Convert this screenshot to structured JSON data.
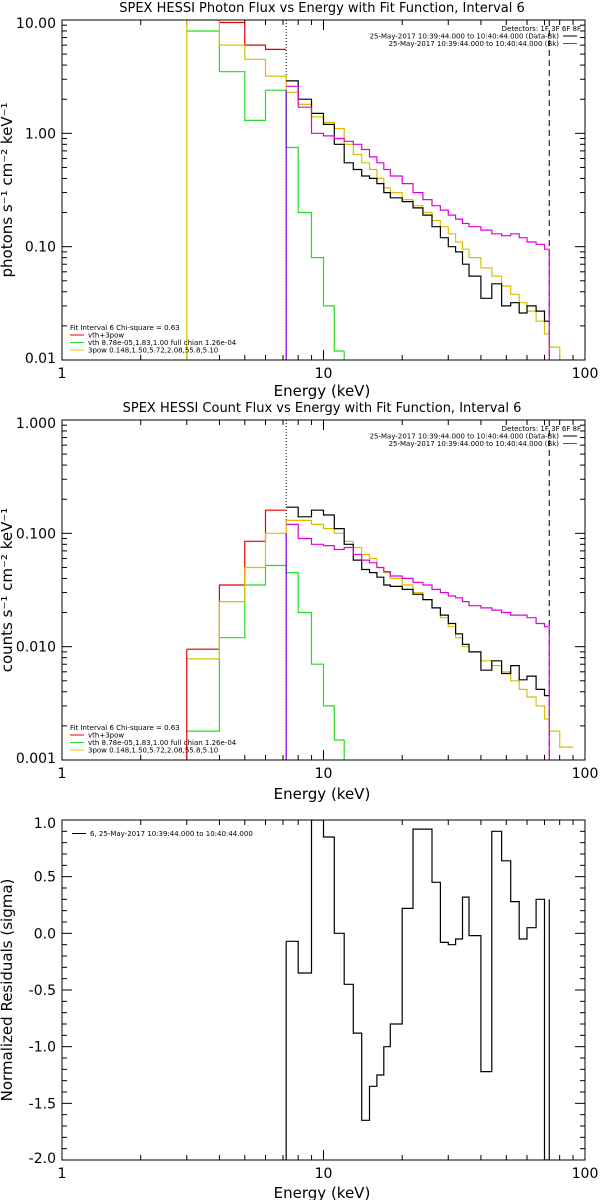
{
  "colors": {
    "black": "#000000",
    "red": "#e00000",
    "green": "#22dd22",
    "yellow": "#d8c000",
    "magenta": "#dd00dd",
    "purple": "#7700ee",
    "background": "#ffffff"
  },
  "chart_data": [
    {
      "type": "line",
      "line_style": "step",
      "title": "SPEX HESSI Photon Flux vs Energy with Fit Function, Interval 6",
      "xlabel": "Energy (keV)",
      "ylabel": "photons s⁻¹ cm⁻² keV⁻¹",
      "xscale": "log",
      "yscale": "log",
      "xlim": [
        1,
        100
      ],
      "ylim": [
        0.01,
        10
      ],
      "xticks": [
        {
          "v": 1,
          "label": "1"
        },
        {
          "v": 10,
          "label": "10"
        },
        {
          "v": 100,
          "label": "100"
        }
      ],
      "yticks": [
        {
          "v": 0.01,
          "label": "0.01"
        },
        {
          "v": 0.1,
          "label": "0.10"
        },
        {
          "v": 1,
          "label": "1.00"
        },
        {
          "v": 10,
          "label": "10.00"
        }
      ],
      "vlines": [
        {
          "x": 7.2,
          "style": "dotted",
          "color": "#000000"
        },
        {
          "x": 73,
          "style": "dashed",
          "color": "#000000"
        }
      ],
      "legend_top_right": [
        {
          "text": "Detectors: 1F 3F 6F 8F",
          "color": "#000000",
          "marker": false
        },
        {
          "text": "25-May-2017 10:39:44.000 to 10:40:44.000 (Data-Bk)",
          "color": "#000000",
          "marker": true
        },
        {
          "text": "25-May-2017 10:39:44.000 to 10:40:44.000 (Bk)",
          "color": "#dd00dd",
          "marker": true
        }
      ],
      "legend_bottom_left": [
        {
          "text": "Fit Interval  6    Chi-square = 0.63",
          "color": "#000000",
          "marker": false
        },
        {
          "text": "vth+3pow",
          "color": "#e00000",
          "marker": true
        },
        {
          "text": "vth 8.78e-05,1.83,1.00   full chian 1.26e-04",
          "color": "#22dd22",
          "marker": true
        },
        {
          "text": "3pow 0.148,1.50,5.72,2.08,55.8,5.10",
          "color": "#d8c000",
          "marker": true
        }
      ],
      "series": [
        {
          "name": "vth+3pow",
          "color": "#e00000",
          "edges": [
            3,
            4,
            5,
            6,
            7.2
          ],
          "values": [
            10.5,
            9.5,
            6.0,
            5.5
          ]
        },
        {
          "name": "vth",
          "color": "#22dd22",
          "edges": [
            3,
            4,
            5,
            6,
            7.2,
            8,
            9,
            10,
            11,
            12
          ],
          "values": [
            8.0,
            3.5,
            1.3,
            2.4,
            0.75,
            0.2,
            0.08,
            0.03,
            0.012
          ]
        },
        {
          "name": "3pow",
          "color": "#d8c000",
          "edges": [
            3,
            4,
            5,
            6,
            7.2,
            8,
            9,
            10,
            11,
            12,
            13,
            14,
            15,
            16,
            17,
            18,
            20,
            22,
            24,
            26,
            28,
            30,
            32,
            34,
            36,
            40,
            44,
            48,
            52,
            56,
            60,
            65,
            70,
            73,
            80,
            90
          ],
          "values": [
            10.0,
            6.0,
            4.5,
            3.2,
            2.3,
            1.8,
            1.4,
            1.25,
            1.1,
            0.8,
            0.65,
            0.55,
            0.48,
            0.4,
            0.33,
            0.3,
            0.26,
            0.23,
            0.2,
            0.17,
            0.15,
            0.13,
            0.11,
            0.095,
            0.08,
            0.065,
            0.055,
            0.045,
            0.038,
            0.032,
            0.027,
            0.022,
            0.017,
            0.013,
            0.01
          ]
        },
        {
          "name": "Data-Bk",
          "color": "#000000",
          "edges": [
            7.2,
            8,
            9,
            10,
            11,
            12,
            13,
            14,
            15,
            16,
            17,
            18,
            20,
            22,
            24,
            26,
            28,
            30,
            32,
            34,
            36,
            40,
            44,
            48,
            52,
            56,
            60,
            65,
            70,
            73
          ],
          "values": [
            2.9,
            2.0,
            1.5,
            1.2,
            0.8,
            0.55,
            0.48,
            0.42,
            0.4,
            0.36,
            0.3,
            0.27,
            0.25,
            0.22,
            0.19,
            0.15,
            0.12,
            0.1,
            0.09,
            0.07,
            0.055,
            0.035,
            0.047,
            0.03,
            0.032,
            0.026,
            0.03,
            0.027,
            0.022
          ]
        },
        {
          "name": "Bk",
          "color": "#dd00dd",
          "edges": [
            7.2,
            8,
            9,
            10,
            11,
            12,
            13,
            14,
            15,
            16,
            17,
            18,
            20,
            22,
            24,
            26,
            28,
            30,
            32,
            34,
            36,
            40,
            44,
            48,
            52,
            56,
            60,
            65,
            70,
            73
          ],
          "values": [
            2.6,
            1.7,
            1.0,
            0.95,
            0.9,
            0.85,
            0.8,
            0.72,
            0.62,
            0.55,
            0.48,
            0.42,
            0.36,
            0.3,
            0.26,
            0.23,
            0.21,
            0.19,
            0.175,
            0.16,
            0.15,
            0.14,
            0.13,
            0.125,
            0.13,
            0.12,
            0.11,
            0.105,
            0.095
          ]
        }
      ],
      "vertical_segments": [
        {
          "x": 3,
          "y0": 0.01,
          "y1": 10.5,
          "color": "#d8c000"
        },
        {
          "x": 7.2,
          "y0": 0.01,
          "y1": 2.4,
          "color": "#7700ee"
        },
        {
          "x": 12,
          "y0": 0.01,
          "y1": 0.012,
          "color": "#22dd22"
        },
        {
          "x": 73,
          "y0": 0.01,
          "y1": 0.095,
          "color": "#dd00dd"
        }
      ]
    },
    {
      "type": "line",
      "line_style": "step",
      "title": "SPEX HESSI Count Flux vs Energy with Fit Function, Interval 6",
      "xlabel": "Energy (keV)",
      "ylabel": "counts s⁻¹ cm⁻² keV⁻¹",
      "xscale": "log",
      "yscale": "log",
      "xlim": [
        1,
        100
      ],
      "ylim": [
        0.001,
        1
      ],
      "xticks": [
        {
          "v": 1,
          "label": "1"
        },
        {
          "v": 10,
          "label": "10"
        },
        {
          "v": 100,
          "label": "100"
        }
      ],
      "yticks": [
        {
          "v": 0.001,
          "label": "0.001"
        },
        {
          "v": 0.01,
          "label": "0.010"
        },
        {
          "v": 0.1,
          "label": "0.100"
        },
        {
          "v": 1,
          "label": "1.000"
        }
      ],
      "vlines": [
        {
          "x": 7.2,
          "style": "dotted",
          "color": "#000000"
        },
        {
          "x": 73,
          "style": "dashed",
          "color": "#000000"
        }
      ],
      "legend_top_right": [
        {
          "text": "Detectors: 1F 3F 6F 8F",
          "color": "#000000",
          "marker": false
        },
        {
          "text": "25-May-2017 10:39:44.000 to 10:40:44.000 (Data-Bk)",
          "color": "#000000",
          "marker": true
        },
        {
          "text": "25-May-2017 10:39:44.000 to 10:40:44.000 (Bk)",
          "color": "#dd00dd",
          "marker": true
        }
      ],
      "legend_bottom_left": [
        {
          "text": "Fit Interval  6    Chi-square = 0.63",
          "color": "#000000",
          "marker": false
        },
        {
          "text": "vth+3pow",
          "color": "#e00000",
          "marker": true
        },
        {
          "text": "vth 8.78e-05,1.83,1.00   full chian 1.26e-04",
          "color": "#22dd22",
          "marker": true
        },
        {
          "text": "3pow 0.148,1.50,5.72,2.08,55.8,5.10",
          "color": "#d8c000",
          "marker": true
        }
      ],
      "series": [
        {
          "name": "vth+3pow",
          "color": "#e00000",
          "edges": [
            3,
            4,
            5,
            6,
            7.2
          ],
          "values": [
            0.0095,
            0.035,
            0.085,
            0.16
          ]
        },
        {
          "name": "vth",
          "color": "#22dd22",
          "edges": [
            3,
            4,
            5,
            6,
            7.2,
            8,
            9,
            10,
            11,
            12
          ],
          "values": [
            0.0018,
            0.012,
            0.035,
            0.052,
            0.045,
            0.02,
            0.007,
            0.003,
            0.0015
          ]
        },
        {
          "name": "3pow",
          "color": "#d8c000",
          "edges": [
            3,
            4,
            5,
            6,
            7.2,
            8,
            9,
            10,
            11,
            12,
            13,
            14,
            15,
            16,
            17,
            18,
            20,
            22,
            24,
            26,
            28,
            30,
            32,
            34,
            36,
            40,
            44,
            48,
            52,
            56,
            60,
            65,
            70,
            73,
            80,
            90
          ],
          "values": [
            0.0078,
            0.025,
            0.05,
            0.1,
            0.13,
            0.13,
            0.12,
            0.11,
            0.1,
            0.085,
            0.075,
            0.065,
            0.06,
            0.05,
            0.045,
            0.04,
            0.035,
            0.03,
            0.026,
            0.022,
            0.018,
            0.015,
            0.012,
            0.01,
            0.009,
            0.0075,
            0.0068,
            0.006,
            0.005,
            0.0042,
            0.0036,
            0.003,
            0.0023,
            0.0018,
            0.0013
          ]
        },
        {
          "name": "Data-Bk",
          "color": "#000000",
          "edges": [
            7.2,
            8,
            9,
            10,
            11,
            12,
            13,
            14,
            15,
            16,
            17,
            18,
            20,
            22,
            24,
            26,
            28,
            30,
            32,
            34,
            36,
            40,
            44,
            48,
            52,
            56,
            60,
            65,
            70,
            73
          ],
          "values": [
            0.17,
            0.14,
            0.16,
            0.145,
            0.11,
            0.08,
            0.058,
            0.048,
            0.045,
            0.041,
            0.035,
            0.034,
            0.032,
            0.029,
            0.026,
            0.022,
            0.019,
            0.016,
            0.013,
            0.0105,
            0.009,
            0.0062,
            0.0075,
            0.0058,
            0.0068,
            0.0051,
            0.0055,
            0.0042,
            0.0037
          ]
        },
        {
          "name": "Bk",
          "color": "#dd00dd",
          "edges": [
            7.2,
            8,
            9,
            10,
            11,
            12,
            13,
            14,
            15,
            16,
            17,
            18,
            20,
            22,
            24,
            26,
            28,
            30,
            32,
            34,
            36,
            40,
            44,
            48,
            52,
            56,
            60,
            65,
            70,
            73
          ],
          "values": [
            0.12,
            0.09,
            0.08,
            0.078,
            0.072,
            0.075,
            0.065,
            0.058,
            0.055,
            0.05,
            0.046,
            0.042,
            0.04,
            0.037,
            0.035,
            0.032,
            0.03,
            0.028,
            0.027,
            0.025,
            0.023,
            0.022,
            0.021,
            0.02,
            0.019,
            0.019,
            0.018,
            0.016,
            0.015
          ]
        }
      ],
      "vertical_segments": [
        {
          "x": 3,
          "y0": 0.001,
          "y1": 0.0095,
          "color": "#e00000"
        },
        {
          "x": 7.2,
          "y0": 0.001,
          "y1": 0.1,
          "color": "#7700ee"
        },
        {
          "x": 12,
          "y0": 0.001,
          "y1": 0.0015,
          "color": "#22dd22"
        },
        {
          "x": 73,
          "y0": 0.001,
          "y1": 0.015,
          "color": "#dd00dd"
        }
      ]
    },
    {
      "type": "line",
      "line_style": "step",
      "title": "",
      "xlabel": "Energy (keV)",
      "ylabel": "Normalized Residuals (sigma)",
      "xscale": "log",
      "yscale": "linear",
      "xlim": [
        1,
        100
      ],
      "ylim": [
        -2.0,
        1.0
      ],
      "xticks": [
        {
          "v": 1,
          "label": "1"
        },
        {
          "v": 10,
          "label": "10"
        },
        {
          "v": 100,
          "label": "100"
        }
      ],
      "yticks": [
        {
          "v": -2.0,
          "label": "-2.0"
        },
        {
          "v": -1.5,
          "label": "-1.5"
        },
        {
          "v": -1.0,
          "label": "-1.0"
        },
        {
          "v": -0.5,
          "label": "-0.5"
        },
        {
          "v": 0.0,
          "label": "0.0"
        },
        {
          "v": 0.5,
          "label": "0.5"
        },
        {
          "v": 1.0,
          "label": "1.0"
        }
      ],
      "legend_top_left": [
        {
          "text": "6, 25-May-2017 10:39:44.000 to 10:40:44.000",
          "color": "#000000",
          "marker": true
        }
      ],
      "series": [
        {
          "name": "6, 25-May-2017 10:39:44.000 to 10:40:44.000",
          "color": "#000000",
          "edges": [
            7.2,
            8,
            9,
            10,
            11,
            12,
            13,
            14,
            15,
            16,
            17,
            18,
            20,
            22,
            24,
            26,
            28,
            30,
            32,
            34,
            36,
            40,
            44,
            48,
            52,
            56,
            60,
            65,
            70,
            73
          ],
          "values": [
            -0.07,
            -0.35,
            1.0,
            0.85,
            0.0,
            -0.45,
            -0.88,
            -1.65,
            -1.35,
            -1.25,
            -1.0,
            -0.8,
            0.22,
            0.92,
            0.92,
            0.45,
            -0.08,
            -0.1,
            -0.05,
            0.32,
            -0.02,
            -1.22,
            0.9,
            0.64,
            0.28,
            -0.05,
            0.05,
            0.3,
            -2.0
          ]
        }
      ],
      "vertical_segments": [
        {
          "x": 7.2,
          "y0": -2.0,
          "y1": -0.07,
          "color": "#000000"
        },
        {
          "x": 73,
          "y0": -2.0,
          "y1": 0.3,
          "color": "#000000"
        }
      ]
    }
  ]
}
